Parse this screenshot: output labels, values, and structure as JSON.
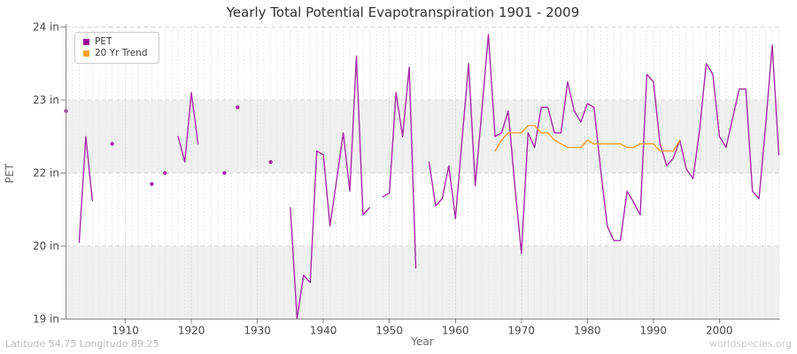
{
  "title": "Yearly Total Potential Evapotranspiration 1901 - 2009",
  "legend": {
    "items": [
      {
        "label": "PET",
        "color": "#990099"
      },
      {
        "label": "20 Yr Trend",
        "color": "#ffa22b"
      }
    ]
  },
  "axes": {
    "x_label": "Year",
    "y_label": "PET",
    "y_ticks": [
      {
        "label": "24 in",
        "value": 24
      },
      {
        "label": "23 in",
        "value": 23
      },
      {
        "label": "22 in",
        "value": 22
      },
      {
        "label": "20 in",
        "value": 20
      },
      {
        "label": "19 in",
        "value": 19
      }
    ],
    "x_ticks": [
      {
        "label": "1910",
        "value": 1910
      },
      {
        "label": "1920",
        "value": 1920
      },
      {
        "label": "1930",
        "value": 1930
      },
      {
        "label": "1940",
        "value": 1940
      },
      {
        "label": "1950",
        "value": 1950
      },
      {
        "label": "1960",
        "value": 1960
      },
      {
        "label": "1970",
        "value": 1970
      },
      {
        "label": "1980",
        "value": 1980
      },
      {
        "label": "1990",
        "value": 1990
      },
      {
        "label": "2000",
        "value": 2000
      }
    ]
  },
  "footer": {
    "left": "Latitude 54.75 Longitude 89.25",
    "right": "worldspecies.org"
  },
  "colors": {
    "pet_line": "#a32ca3",
    "trend_line": "#faa235",
    "band": "#f0f0f0",
    "grid_minor": "#e6e6e6",
    "grid_decade": "#d9d9d9",
    "grid_horizontal": "#dadada",
    "axis": "#888888"
  },
  "chart_data": {
    "type": "line",
    "title": "Yearly Total Potential Evapotranspiration 1901 - 2009",
    "xlabel": "Year",
    "ylabel": "PET",
    "x_start": 1901,
    "x_end": 2009,
    "y_tick_values": [
      19,
      20,
      22,
      23,
      24
    ],
    "y_axis_note": "ticks equally spaced; 21 is not labeled so the 20-22 band is compressed",
    "gray_bands": [
      [
        19,
        20
      ],
      [
        22,
        23
      ]
    ],
    "legend_position": "top-left",
    "series": [
      {
        "name": "PET",
        "color": "#a32ca3",
        "values": [
          22.85,
          null,
          20.1,
          22.5,
          21.25,
          null,
          null,
          22.4,
          null,
          null,
          null,
          null,
          null,
          21.7,
          null,
          22.0,
          null,
          22.5,
          22.15,
          23.1,
          22.4,
          null,
          null,
          null,
          22.0,
          null,
          22.9,
          null,
          null,
          null,
          null,
          22.15,
          null,
          null,
          21.05,
          19.0,
          19.6,
          19.5,
          22.3,
          22.25,
          20.55,
          21.8,
          22.55,
          21.5,
          23.6,
          20.85,
          21.05,
          null,
          21.35,
          21.45,
          23.1,
          22.5,
          23.45,
          19.7,
          null,
          22.15,
          21.1,
          21.3,
          22.1,
          20.75,
          22.45,
          23.5,
          21.65,
          22.85,
          23.9,
          22.5,
          22.55,
          22.85,
          21.65,
          19.9,
          22.55,
          22.35,
          22.9,
          22.9,
          22.55,
          22.55,
          23.25,
          22.85,
          22.7,
          22.95,
          22.9,
          22.05,
          20.55,
          20.15,
          20.15,
          21.5,
          21.2,
          20.85,
          23.35,
          23.25,
          22.4,
          22.1,
          22.2,
          22.45,
          22.05,
          21.85,
          22.6,
          23.5,
          23.35,
          22.5,
          22.35,
          22.75,
          23.15,
          23.15,
          21.5,
          21.3,
          22.65,
          23.75,
          22.25
        ]
      },
      {
        "name": "20 Yr Trend",
        "color": "#faa235",
        "values": [
          null,
          null,
          null,
          null,
          null,
          null,
          null,
          null,
          null,
          null,
          null,
          null,
          null,
          null,
          null,
          null,
          null,
          null,
          null,
          null,
          null,
          null,
          null,
          null,
          null,
          null,
          null,
          null,
          null,
          null,
          null,
          null,
          null,
          null,
          null,
          null,
          null,
          null,
          null,
          null,
          null,
          null,
          null,
          null,
          null,
          null,
          null,
          null,
          null,
          null,
          null,
          null,
          null,
          null,
          null,
          null,
          null,
          null,
          null,
          null,
          null,
          null,
          null,
          null,
          null,
          22.3,
          22.45,
          22.55,
          22.55,
          22.55,
          22.65,
          22.65,
          22.55,
          22.55,
          22.45,
          22.4,
          22.35,
          22.35,
          22.35,
          22.45,
          22.4,
          22.4,
          22.4,
          22.4,
          22.4,
          22.35,
          22.35,
          22.4,
          22.4,
          22.4,
          22.3,
          22.3,
          22.3,
          22.45,
          null,
          null,
          null,
          null,
          null,
          null,
          null,
          null,
          null,
          null,
          null,
          null,
          null,
          null,
          null
        ]
      }
    ]
  }
}
